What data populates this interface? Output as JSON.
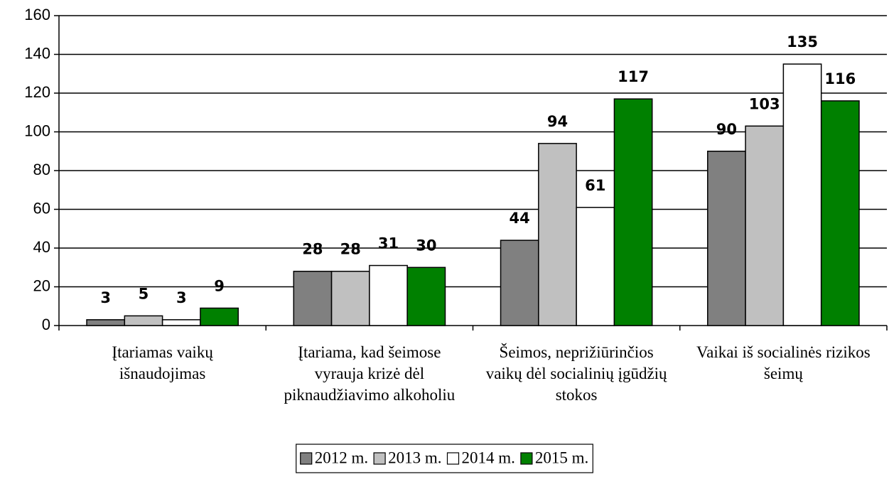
{
  "chart_data": {
    "type": "bar",
    "categories": [
      "Įtariamas vaikų išnaudojimas",
      "Įtariama, kad šeimose vyrauja krizė dėl piknaudžiavimo alkoholiu",
      "Šeimos, neprižiūrinčios vaikų dėl socialinių įgūdžių stokos",
      "Vaikai iš socialinės rizikos šeimų"
    ],
    "series": [
      {
        "name": "2012 m.",
        "color": "#808080",
        "values": [
          3,
          28,
          44,
          90
        ]
      },
      {
        "name": "2013 m.",
        "color": "#c0c0c0",
        "values": [
          5,
          28,
          94,
          103
        ]
      },
      {
        "name": "2014 m.",
        "color": "#ffffff",
        "values": [
          3,
          31,
          61,
          135
        ]
      },
      {
        "name": "2015 m.",
        "color": "#008000",
        "values": [
          9,
          30,
          117,
          116
        ]
      }
    ],
    "ylim": [
      0,
      160
    ],
    "yticks": [
      0,
      20,
      40,
      60,
      80,
      100,
      120,
      140,
      160
    ],
    "grid": true,
    "legend": "bottom"
  }
}
